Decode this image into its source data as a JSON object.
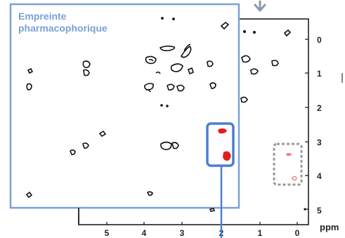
{
  "inset": {
    "title_line1": "Empreinte",
    "title_line2": "pharmacophorique"
  },
  "axes": {
    "x_ticks": [
      "5",
      "4",
      "3",
      "2",
      "1",
      "0"
    ],
    "y_ticks": [
      "0",
      "1",
      "2",
      "3",
      "4",
      "5"
    ],
    "unit": "ppm"
  },
  "colors": {
    "frame": "#111111",
    "contour": "#111111",
    "highlight_peak": "#e21d1d",
    "faint_peak": "#f08080",
    "inset_border": "#7aa0d8",
    "selection_box": "#4a7fd0",
    "dashed_box": "#999999",
    "top_arrow": "#8a9aaa"
  }
}
